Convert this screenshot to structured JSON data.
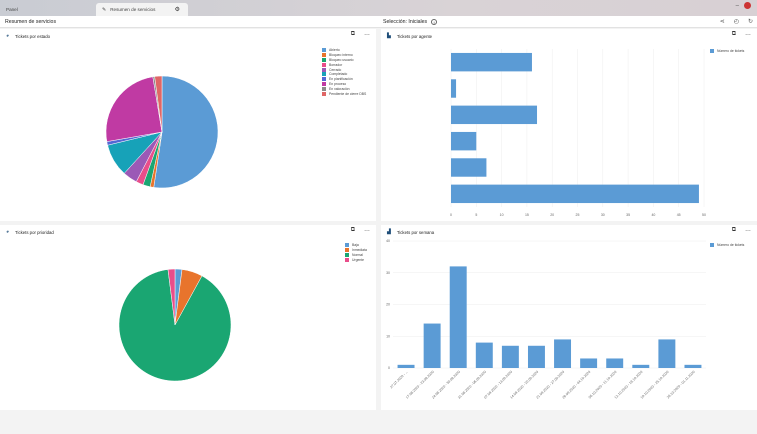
{
  "tabs": [
    {
      "label": "Panel"
    },
    {
      "label": "Resumen de servicios"
    }
  ],
  "header": {
    "title": "Resumen de servicios",
    "selection": "Selección: Iniciales"
  },
  "panels": {
    "estado": {
      "title": "Tickets por estado"
    },
    "agente": {
      "title": "Tickets por agente"
    },
    "prioridad": {
      "title": "Tickets por prioridad"
    },
    "semana": {
      "title": "Tickets por semana"
    }
  },
  "chart_data": [
    {
      "type": "pie",
      "title": "Tickets por estado",
      "labels": [
        "Abierto",
        "Bloqueo interno",
        "Bloqueo usuario",
        "Borrador",
        "Cerrado",
        "Completado",
        "En planificación",
        "En proceso",
        "En valoración",
        "Pendiente de cierre DBS"
      ],
      "values": [
        50,
        1,
        2,
        2,
        4,
        9,
        1,
        24,
        0.5,
        2
      ],
      "colors": [
        "#5b9bd5",
        "#e8742c",
        "#1aa672",
        "#e94d8a",
        "#9b59b6",
        "#17a2b8",
        "#5468d4",
        "#c03aa3",
        "#8a8a8a",
        "#e06666"
      ],
      "legend": "right"
    },
    {
      "type": "bar",
      "orientation": "horizontal",
      "title": "Tickets por agente",
      "series": [
        {
          "name": "Número de tickets",
          "values": [
            16,
            1,
            17,
            5,
            7,
            49
          ]
        }
      ],
      "xlim": [
        0,
        50
      ],
      "xticks": [
        "0",
        "5",
        "10",
        "15",
        "20",
        "25",
        "30",
        "35",
        "40",
        "45",
        "50"
      ],
      "color": "#5b9bd5",
      "legend": "top-right"
    },
    {
      "type": "pie",
      "title": "Tickets por prioridad",
      "labels": [
        "Baja",
        "Inmediata",
        "Normal",
        "Urgente"
      ],
      "values": [
        2,
        6,
        90,
        2
      ],
      "colors": [
        "#5b9bd5",
        "#e8742c",
        "#1aa672",
        "#e94d8a"
      ],
      "legend": "top-right"
    },
    {
      "type": "bar",
      "title": "Tickets por semana",
      "categories": [
        "27.07.2020 - ...",
        "17.08.2020 - 23.08.2020",
        "24.08.2020 - 30.08.2020",
        "31.08.2020 - 06.09.2020",
        "07.09.2020 - 13.09.2020",
        "14.09.2020 - 20.09.2020",
        "21.09.2020 - 27.09.2020",
        "28.09.2020 - 04.10.2020",
        "05.10.2020 - 11.10.2020",
        "12.10.2020 - 18.10.2020",
        "19.10.2020 - 25.10.2020",
        "26.10.2020 - 01.11.2020"
      ],
      "series": [
        {
          "name": "Número de tickets",
          "values": [
            1,
            14,
            32,
            8,
            7,
            7,
            9,
            3,
            3,
            1,
            9,
            1
          ]
        }
      ],
      "ylim": [
        0,
        40
      ],
      "yticks": [
        "0",
        "10",
        "20",
        "30",
        "40"
      ],
      "color": "#5b9bd5",
      "legend": "top-right"
    }
  ]
}
